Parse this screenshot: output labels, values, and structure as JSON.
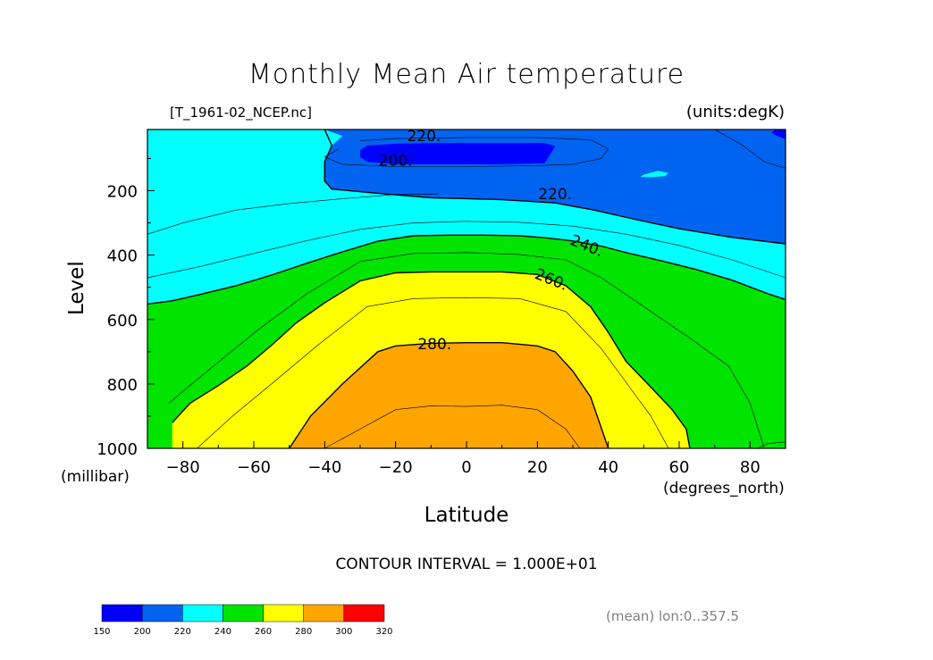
{
  "chart_data": {
    "type": "contour",
    "title": "Monthly Mean Air temperature",
    "file_label": "[T_1961-02_NCEP.nc]",
    "units_label": "(units:degK)",
    "xlabel": "Latitude",
    "x_units": "(degrees_north)",
    "ylabel": "Level",
    "y_units": "(millibar)",
    "xlim": [
      -90,
      90
    ],
    "ylim": [
      1000,
      10
    ],
    "x_ticks": [
      -80,
      -60,
      -40,
      -20,
      0,
      20,
      40,
      60,
      80
    ],
    "x_tick_labels": [
      "−80",
      "−60",
      "−40",
      "−20",
      "0",
      "20",
      "40",
      "60",
      "80"
    ],
    "y_ticks": [
      200,
      400,
      600,
      800,
      1000
    ],
    "contour_interval_text": "CONTOUR INTERVAL = 1.000E+01",
    "contour_interval": 10,
    "contour_labels": [
      {
        "text": "220.",
        "lat": -12,
        "lev": 30
      },
      {
        "text": "200.",
        "lat": -20,
        "lev": 105
      },
      {
        "text": "220.",
        "lat": 25,
        "lev": 210
      },
      {
        "text": "240.",
        "lat": 34,
        "lev": 370
      },
      {
        "text": "260.",
        "lat": 24,
        "lev": 475
      },
      {
        "text": "280.",
        "lat": -9,
        "lev": 675
      }
    ],
    "color_levels": [
      150,
      200,
      220,
      240,
      260,
      280,
      300,
      320
    ],
    "colors": [
      "#0000ff",
      "#0064f0",
      "#00ffff",
      "#00e400",
      "#ffff00",
      "#ffa500",
      "#ff0000"
    ],
    "footnote": "(mean) lon:0..357.5",
    "regions": [
      {
        "value": 230,
        "color": "#00ffff",
        "points": [
          [
            -90,
            10
          ],
          [
            90,
            10
          ],
          [
            90,
            1000
          ],
          [
            -90,
            1000
          ]
        ]
      },
      {
        "value": 210,
        "color": "#0064f0",
        "points": [
          [
            -40,
            10
          ],
          [
            90,
            10
          ],
          [
            90,
            365
          ],
          [
            75,
            345
          ],
          [
            60,
            318
          ],
          [
            48,
            290
          ],
          [
            36,
            260
          ],
          [
            25,
            238
          ],
          [
            10,
            228
          ],
          [
            -10,
            222
          ],
          [
            -25,
            208
          ],
          [
            -38,
            195
          ],
          [
            -40,
            170
          ],
          [
            -40,
            110
          ],
          [
            -38,
            60
          ],
          [
            -35,
            30
          ]
        ]
      },
      {
        "value": 195,
        "color": "#0000ff",
        "points": [
          [
            -28,
            60
          ],
          [
            -20,
            54
          ],
          [
            -10,
            52
          ],
          [
            0,
            52
          ],
          [
            10,
            52
          ],
          [
            22,
            52
          ],
          [
            25,
            62
          ],
          [
            22,
            115
          ],
          [
            10,
            118
          ],
          [
            0,
            118
          ],
          [
            -10,
            118
          ],
          [
            -20,
            118
          ],
          [
            -28,
            110
          ],
          [
            -30,
            95
          ],
          [
            -30,
            75
          ]
        ]
      },
      {
        "value": 195,
        "color": "#0000ff",
        "points": [
          [
            88,
            2
          ],
          [
            90,
            2
          ],
          [
            90,
            40
          ],
          [
            88,
            32
          ],
          [
            86,
            20
          ]
        ]
      },
      {
        "value": 230,
        "color": "#00ffff",
        "points": [
          [
            50,
            150
          ],
          [
            54,
            138
          ],
          [
            57,
            145
          ],
          [
            56,
            155
          ],
          [
            52,
            158
          ],
          [
            49,
            157
          ]
        ]
      },
      {
        "value": 250,
        "color": "#00e400",
        "points": [
          [
            -90,
            552
          ],
          [
            -83,
            542
          ],
          [
            -75,
            522
          ],
          [
            -65,
            495
          ],
          [
            -55,
            462
          ],
          [
            -45,
            425
          ],
          [
            -35,
            390
          ],
          [
            -25,
            357
          ],
          [
            -15,
            340
          ],
          [
            -5,
            338
          ],
          [
            5,
            338
          ],
          [
            15,
            340
          ],
          [
            22,
            346
          ],
          [
            30,
            356
          ],
          [
            38,
            372
          ],
          [
            45,
            392
          ],
          [
            55,
            418
          ],
          [
            65,
            445
          ],
          [
            75,
            478
          ],
          [
            85,
            520
          ],
          [
            90,
            538
          ],
          [
            90,
            1000
          ],
          [
            -90,
            1000
          ]
        ]
      },
      {
        "value": 270,
        "color": "#ffff00",
        "points": [
          [
            -83,
            1000
          ],
          [
            -83,
            920
          ],
          [
            -78,
            860
          ],
          [
            -70,
            805
          ],
          [
            -62,
            745
          ],
          [
            -55,
            680
          ],
          [
            -48,
            610
          ],
          [
            -40,
            548
          ],
          [
            -30,
            480
          ],
          [
            -20,
            455
          ],
          [
            -10,
            452
          ],
          [
            0,
            452
          ],
          [
            10,
            452
          ],
          [
            20,
            460
          ],
          [
            28,
            495
          ],
          [
            35,
            560
          ],
          [
            40,
            640
          ],
          [
            45,
            730
          ],
          [
            52,
            810
          ],
          [
            58,
            880
          ],
          [
            62,
            940
          ],
          [
            63,
            1000
          ]
        ]
      },
      {
        "value": 285,
        "color": "#ffa500",
        "points": [
          [
            -50,
            1000
          ],
          [
            -44,
            900
          ],
          [
            -35,
            800
          ],
          [
            -25,
            700
          ],
          [
            -20,
            682
          ],
          [
            -10,
            674
          ],
          [
            0,
            672
          ],
          [
            10,
            672
          ],
          [
            20,
            682
          ],
          [
            25,
            700
          ],
          [
            30,
            760
          ],
          [
            35,
            840
          ],
          [
            40,
            1000
          ]
        ]
      },
      {
        "value": 255,
        "color": "#00e400",
        "points": [
          [
            -90,
            1000
          ],
          [
            -90,
            700
          ],
          [
            -86,
            700
          ],
          [
            -86,
            760
          ],
          [
            -84,
            850
          ],
          [
            -84,
            1000
          ]
        ]
      }
    ],
    "thin_isolines": [
      [
        [
          -90,
          335
        ],
        [
          -80,
          300
        ],
        [
          -65,
          260
        ],
        [
          -50,
          240
        ],
        [
          -35,
          225
        ],
        [
          -20,
          212
        ],
        [
          -8,
          210
        ]
      ],
      [
        [
          -30,
          45
        ],
        [
          -20,
          38
        ],
        [
          0,
          35
        ],
        [
          20,
          35
        ],
        [
          35,
          42
        ],
        [
          40,
          70
        ],
        [
          38,
          100
        ],
        [
          30,
          118
        ],
        [
          20,
          122
        ],
        [
          0,
          125
        ],
        [
          -20,
          125
        ],
        [
          -35,
          118
        ],
        [
          -40,
          95
        ],
        [
          -36,
          70
        ]
      ],
      [
        [
          -90,
          470
        ],
        [
          -75,
          435
        ],
        [
          -60,
          395
        ],
        [
          -45,
          355
        ],
        [
          -30,
          320
        ],
        [
          -15,
          300
        ],
        [
          0,
          295
        ],
        [
          15,
          298
        ],
        [
          30,
          310
        ],
        [
          45,
          335
        ],
        [
          60,
          370
        ],
        [
          75,
          415
        ],
        [
          90,
          470
        ]
      ],
      [
        [
          -84,
          860
        ],
        [
          -72,
          750
        ],
        [
          -58,
          625
        ],
        [
          -45,
          520
        ],
        [
          -30,
          420
        ],
        [
          -15,
          395
        ],
        [
          0,
          392
        ],
        [
          15,
          398
        ],
        [
          28,
          415
        ],
        [
          38,
          470
        ],
        [
          50,
          560
        ],
        [
          62,
          650
        ],
        [
          74,
          745
        ],
        [
          80,
          860
        ],
        [
          84,
          1000
        ]
      ],
      [
        [
          -76,
          1000
        ],
        [
          -66,
          900
        ],
        [
          -55,
          800
        ],
        [
          -42,
          680
        ],
        [
          -28,
          560
        ],
        [
          -15,
          535
        ],
        [
          0,
          532
        ],
        [
          15,
          535
        ],
        [
          28,
          575
        ],
        [
          38,
          690
        ],
        [
          46,
          810
        ],
        [
          52,
          900
        ],
        [
          57,
          1000
        ]
      ],
      [
        [
          -40,
          1000
        ],
        [
          -30,
          940
        ],
        [
          -20,
          880
        ],
        [
          -10,
          868
        ],
        [
          0,
          870
        ],
        [
          10,
          866
        ],
        [
          20,
          880
        ],
        [
          28,
          940
        ],
        [
          32,
          1000
        ]
      ],
      [
        [
          70,
          10
        ],
        [
          78,
          60
        ],
        [
          84,
          110
        ],
        [
          90,
          130
        ]
      ],
      [
        [
          82,
          1000
        ],
        [
          85,
          985
        ],
        [
          90,
          980
        ]
      ]
    ],
    "thick_isolines": [
      [
        [
          -40,
          10
        ],
        [
          -38,
          60
        ],
        [
          -40,
          110
        ],
        [
          -40,
          170
        ],
        [
          -38,
          195
        ],
        [
          -25,
          208
        ],
        [
          -10,
          222
        ],
        [
          10,
          228
        ],
        [
          25,
          238
        ],
        [
          36,
          260
        ],
        [
          48,
          290
        ],
        [
          60,
          318
        ],
        [
          75,
          345
        ],
        [
          90,
          365
        ]
      ],
      [
        [
          -90,
          552
        ],
        [
          -83,
          542
        ],
        [
          -75,
          522
        ],
        [
          -65,
          495
        ],
        [
          -55,
          462
        ],
        [
          -45,
          425
        ],
        [
          -35,
          390
        ],
        [
          -25,
          357
        ],
        [
          -15,
          340
        ],
        [
          -5,
          338
        ],
        [
          5,
          338
        ],
        [
          15,
          340
        ],
        [
          22,
          346
        ],
        [
          30,
          356
        ],
        [
          38,
          372
        ],
        [
          45,
          392
        ],
        [
          55,
          418
        ],
        [
          65,
          445
        ],
        [
          75,
          478
        ],
        [
          85,
          520
        ],
        [
          90,
          538
        ]
      ],
      [
        [
          -83,
          920
        ],
        [
          -78,
          860
        ],
        [
          -70,
          805
        ],
        [
          -62,
          745
        ],
        [
          -55,
          680
        ],
        [
          -48,
          610
        ],
        [
          -40,
          548
        ],
        [
          -30,
          480
        ],
        [
          -20,
          455
        ],
        [
          -10,
          452
        ],
        [
          0,
          452
        ],
        [
          10,
          452
        ],
        [
          20,
          460
        ],
        [
          28,
          495
        ],
        [
          35,
          560
        ],
        [
          40,
          640
        ],
        [
          45,
          730
        ],
        [
          52,
          810
        ],
        [
          58,
          880
        ],
        [
          62,
          940
        ],
        [
          63,
          1000
        ]
      ],
      [
        [
          -50,
          1000
        ],
        [
          -44,
          900
        ],
        [
          -35,
          800
        ],
        [
          -25,
          700
        ],
        [
          -20,
          682
        ],
        [
          -10,
          674
        ],
        [
          0,
          672
        ],
        [
          10,
          672
        ],
        [
          20,
          682
        ],
        [
          25,
          700
        ],
        [
          30,
          760
        ],
        [
          35,
          840
        ],
        [
          40,
          1000
        ]
      ]
    ]
  }
}
